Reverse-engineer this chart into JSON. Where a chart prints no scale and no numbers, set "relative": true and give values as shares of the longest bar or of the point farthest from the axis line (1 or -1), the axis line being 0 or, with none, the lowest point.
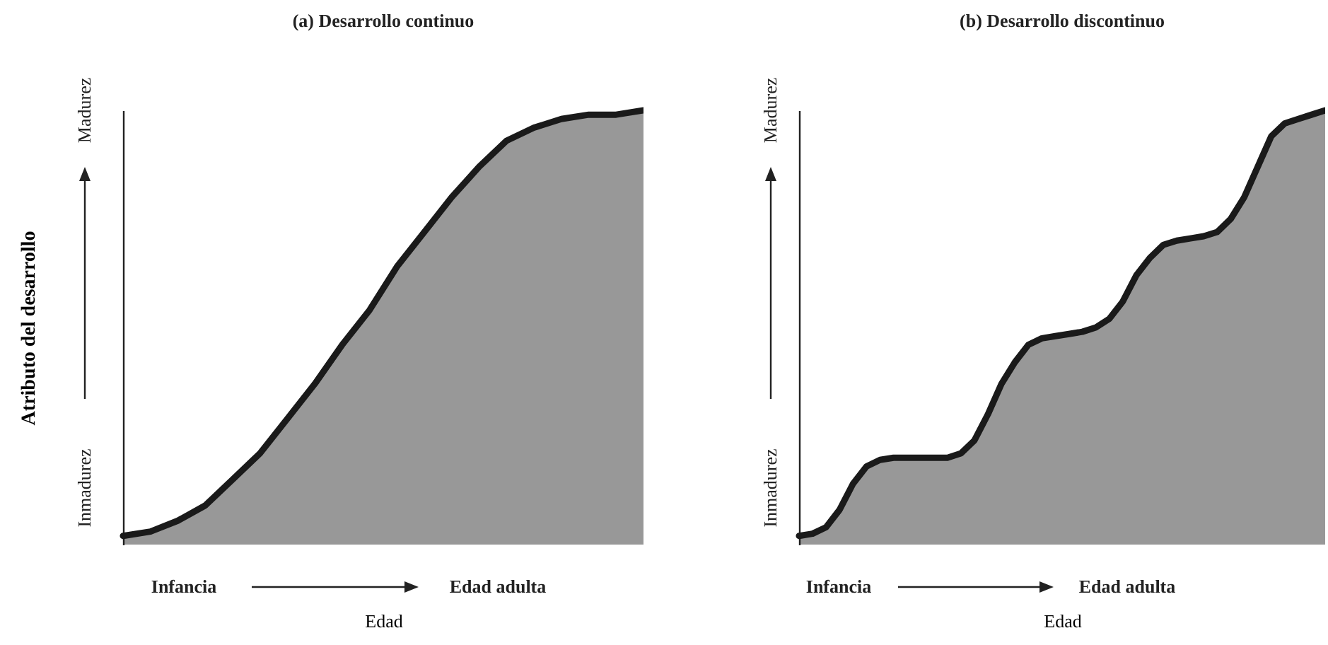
{
  "chart_data": [
    {
      "type": "area",
      "title": "(a) Desarrollo continuo",
      "xlabel": "Edad",
      "ylabel": "Atributo del desarrollo",
      "relative": true,
      "categories": [
        null,
        null,
        null,
        null,
        null,
        null,
        null,
        null,
        null,
        null,
        null,
        null,
        null,
        null,
        null,
        null,
        null,
        null,
        null,
        null
      ],
      "series": [
        {
          "color": "#1a1a1a",
          "values": [
            0.02,
            0.03,
            0.055,
            0.09,
            0.15,
            0.21,
            0.29,
            0.37,
            0.46,
            0.54,
            0.64,
            0.72,
            0.8,
            0.87,
            0.93,
            0.96,
            0.98,
            0.99,
            0.99,
            1
          ]
        }
      ],
      "annotations": [
        "Infancia",
        "Edad adulta",
        "Inmadurez",
        "Madurez"
      ]
    },
    {
      "type": "area",
      "title": "(b) Desarrollo discontinuo",
      "xlabel": "Edad",
      "relative": true,
      "categories": [
        null,
        null,
        null,
        null,
        null,
        null,
        null,
        null,
        null,
        null,
        null,
        null,
        null,
        null,
        null,
        null,
        null,
        null,
        null,
        null,
        null,
        null,
        null,
        null,
        null,
        null,
        null,
        null,
        null,
        null,
        null,
        null,
        null,
        null,
        null,
        null,
        null,
        null,
        null,
        null
      ],
      "series": [
        {
          "color": "#1a1a1a",
          "values": [
            0.02,
            0.025,
            0.04,
            0.08,
            0.14,
            0.18,
            0.195,
            0.2,
            0.2,
            0.2,
            0.2,
            0.2,
            0.21,
            0.24,
            0.3,
            0.37,
            0.42,
            0.46,
            0.475,
            0.48,
            0.485,
            0.49,
            0.5,
            0.52,
            0.56,
            0.62,
            0.66,
            0.69,
            0.7,
            0.705,
            0.71,
            0.72,
            0.75,
            0.8,
            0.87,
            0.94,
            0.97,
            0.98,
            0.99,
            1
          ]
        }
      ],
      "annotations": [
        "Infancia",
        "Edad adulta",
        "Inmadurez",
        "Madurez"
      ]
    }
  ]
}
